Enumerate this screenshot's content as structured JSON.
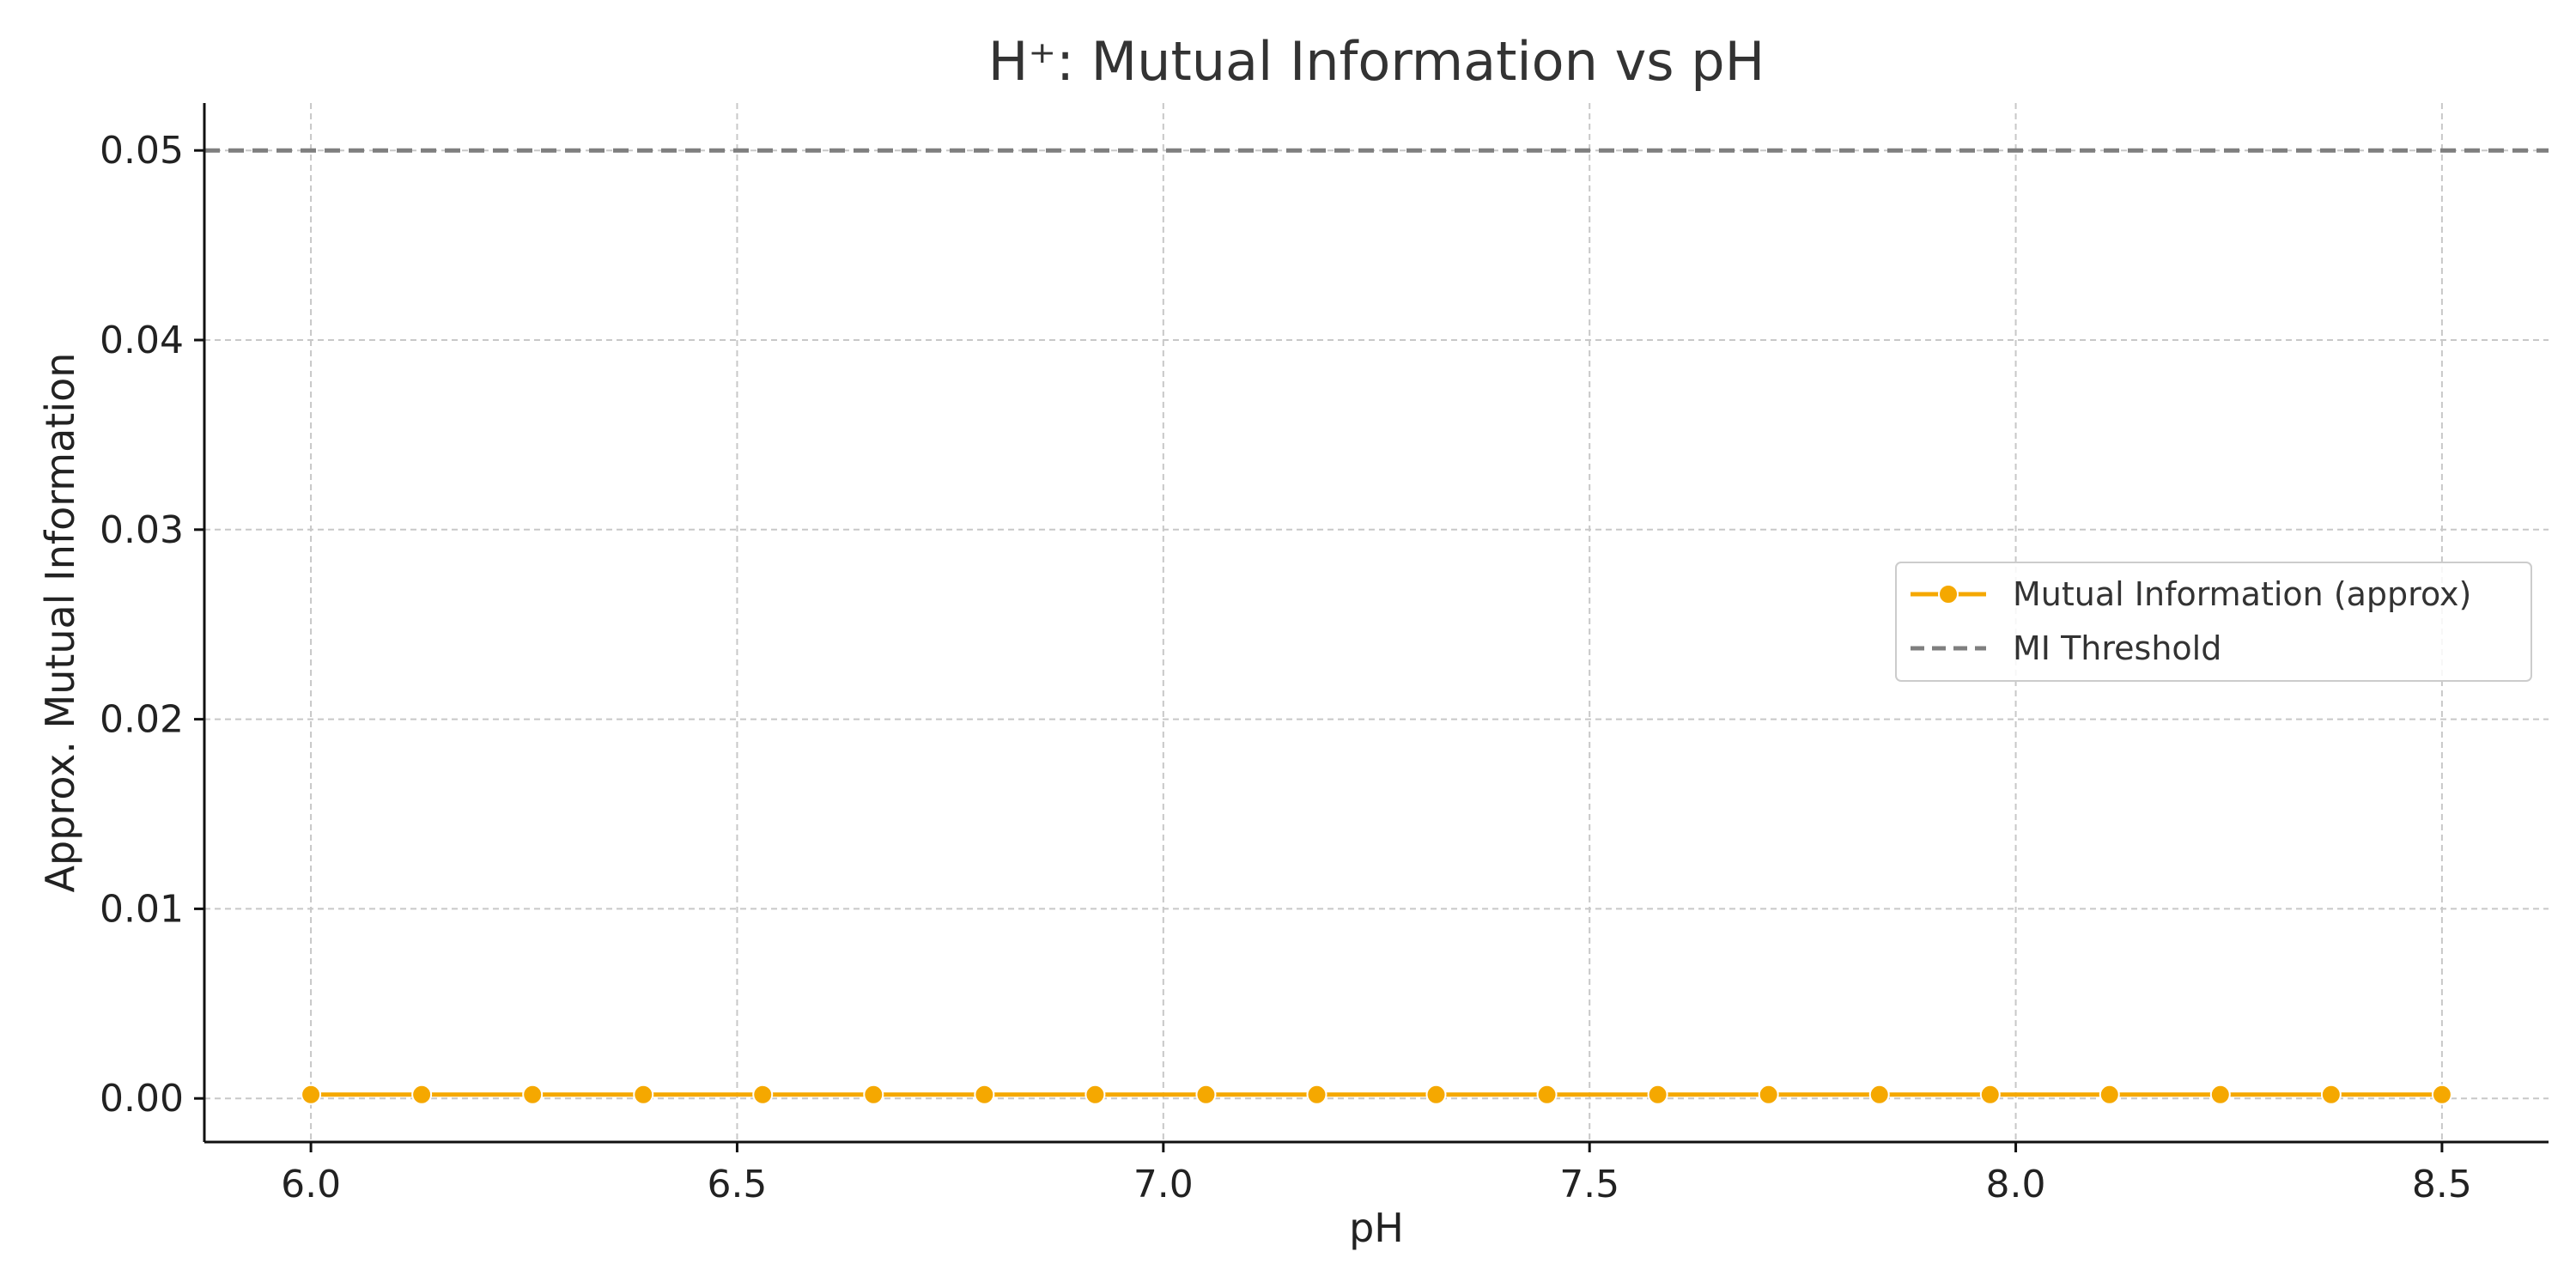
{
  "chart_data": {
    "type": "line",
    "title": "H⁺: Mutual Information vs pH",
    "xlabel": "pH",
    "ylabel": "Approx. Mutual Information",
    "xlim": [
      5.875,
      8.625
    ],
    "ylim": [
      -0.0023,
      0.0525
    ],
    "xticks": [
      6.0,
      6.5,
      7.0,
      7.5,
      8.0,
      8.5
    ],
    "xtick_labels": [
      "6.0",
      "6.5",
      "7.0",
      "7.5",
      "8.0",
      "8.5"
    ],
    "yticks": [
      0.0,
      0.01,
      0.02,
      0.03,
      0.04,
      0.05
    ],
    "ytick_labels": [
      "0.00",
      "0.01",
      "0.02",
      "0.03",
      "0.04",
      "0.05"
    ],
    "grid": true,
    "legend_position": "center-right",
    "series": [
      {
        "name": "Mutual Information (approx)",
        "color": "#F5A800",
        "marker": "circle",
        "x": [
          6.0,
          6.13,
          6.26,
          6.39,
          6.53,
          6.66,
          6.79,
          6.92,
          7.05,
          7.18,
          7.32,
          7.45,
          7.58,
          7.71,
          7.84,
          7.97,
          8.11,
          8.24,
          8.37,
          8.5
        ],
        "y": [
          0.0002,
          0.0002,
          0.0002,
          0.0002,
          0.0002,
          0.0002,
          0.0002,
          0.0002,
          0.0002,
          0.0002,
          0.0002,
          0.0002,
          0.0002,
          0.0002,
          0.0002,
          0.0002,
          0.0002,
          0.0002,
          0.0002,
          0.0002
        ]
      }
    ],
    "threshold": {
      "name": "MI Threshold",
      "y": 0.05,
      "color": "#7f7f7f",
      "style": "dashed"
    }
  }
}
